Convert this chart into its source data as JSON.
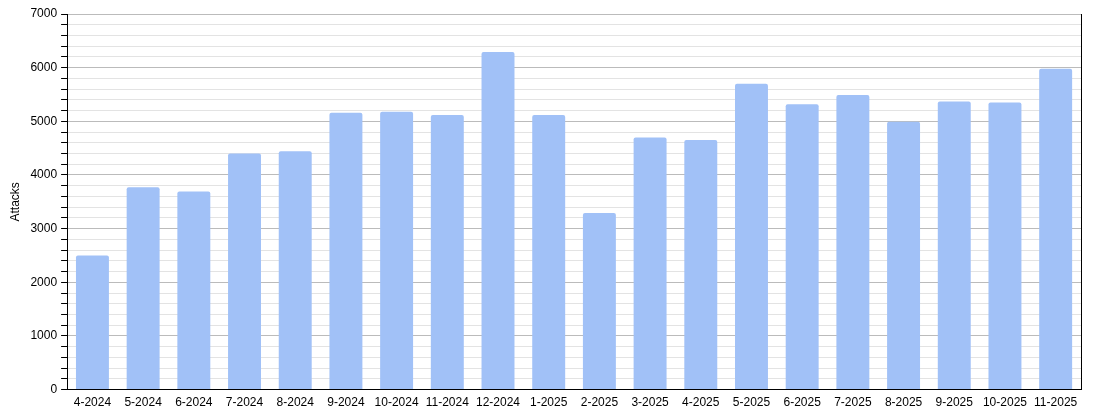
{
  "chart_data": {
    "type": "bar",
    "ylabel": "Attacks",
    "categories": [
      "4-2024",
      "5-2024",
      "6-2024",
      "7-2024",
      "8-2024",
      "9-2024",
      "10-2024",
      "11-2024",
      "12-2024",
      "1-2025",
      "2-2025",
      "3-2025",
      "4-2025",
      "5-2025",
      "6-2025",
      "7-2025",
      "8-2025",
      "9-2025",
      "10-2025",
      "11-2025"
    ],
    "values": [
      2500,
      3770,
      3690,
      4400,
      4440,
      5160,
      5180,
      5120,
      6290,
      5120,
      3290,
      4700,
      4650,
      5700,
      5320,
      5490,
      4990,
      5370,
      5350,
      5980
    ],
    "color": "#a1c1f7",
    "ylim": [
      0,
      7000
    ],
    "yticks": [
      0,
      {
        "value": 200,
        "label": null
      },
      {
        "value": 400,
        "label": null
      },
      {
        "value": 600,
        "label": null
      },
      {
        "value": 800,
        "label": null
      },
      1000,
      {
        "value": 1200,
        "label": null
      },
      {
        "value": 1400,
        "label": null
      },
      {
        "value": 1600,
        "label": null
      },
      {
        "value": 1800,
        "label": null
      },
      2000,
      {
        "value": 2200,
        "label": null
      },
      {
        "value": 2400,
        "label": null
      },
      {
        "value": 2600,
        "label": null
      },
      {
        "value": 2800,
        "label": null
      },
      3000,
      {
        "value": 3200,
        "label": null
      },
      {
        "value": 3400,
        "label": null
      },
      {
        "value": 3600,
        "label": null
      },
      {
        "value": 3800,
        "label": null
      },
      4000,
      {
        "value": 4200,
        "label": null
      },
      {
        "value": 4400,
        "label": null
      },
      {
        "value": 4600,
        "label": null
      },
      {
        "value": 4800,
        "label": null
      },
      5000,
      {
        "value": 5200,
        "label": null
      },
      {
        "value": 5400,
        "label": null
      },
      {
        "value": 5600,
        "label": null
      },
      {
        "value": 5800,
        "label": null
      },
      6000,
      {
        "value": 6200,
        "label": null
      },
      {
        "value": 6400,
        "label": null
      },
      {
        "value": 6600,
        "label": null
      },
      {
        "value": 6800,
        "label": null
      },
      7000
    ],
    "grid": true
  }
}
